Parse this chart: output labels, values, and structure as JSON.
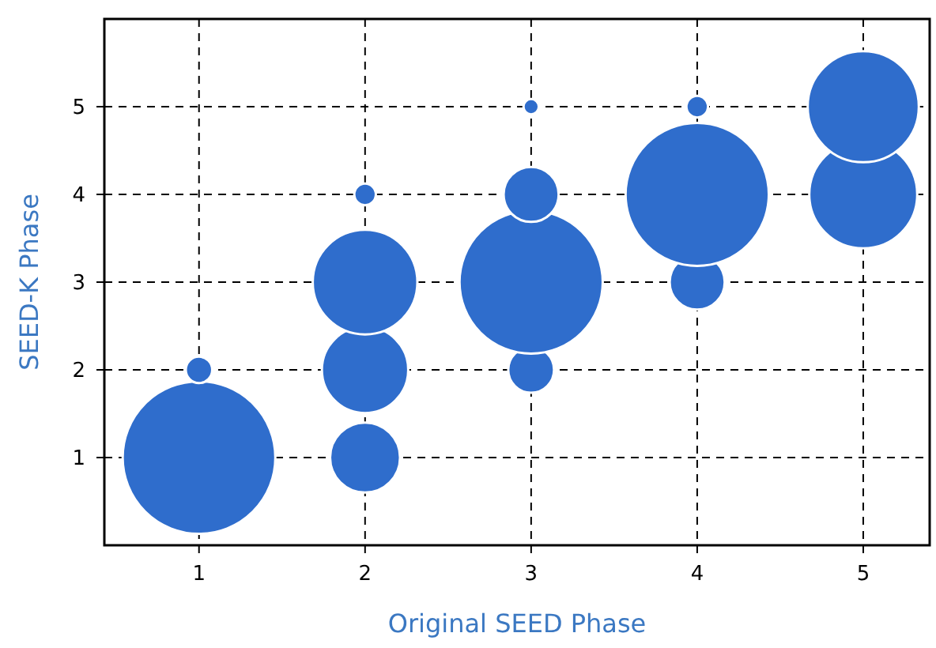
{
  "chart_data": {
    "type": "bubble",
    "xlabel": "Original SEED Phase",
    "ylabel": "SEED-K Phase",
    "xlim": [
      0.43,
      5.4
    ],
    "ylim": [
      0,
      6
    ],
    "xticks": [
      1,
      2,
      3,
      4,
      5
    ],
    "yticks": [
      1,
      2,
      3,
      4,
      5
    ],
    "grid": true,
    "series": [
      {
        "color": "#2f6dcc",
        "x": [
          1,
          1,
          2,
          2,
          2,
          2,
          3,
          3,
          3,
          3,
          4,
          4,
          4,
          5,
          5
        ],
        "values": [
          1,
          2,
          1,
          2,
          3,
          4,
          2,
          3,
          4,
          5,
          3,
          4,
          5,
          4,
          5
        ],
        "sizes": [
          1,
          0.03,
          0.21,
          0.32,
          0.47,
          0.02,
          0.09,
          0.88,
          0.13,
          0.01,
          0.13,
          0.88,
          0.02,
          0.5,
          0.53
        ]
      }
    ]
  }
}
